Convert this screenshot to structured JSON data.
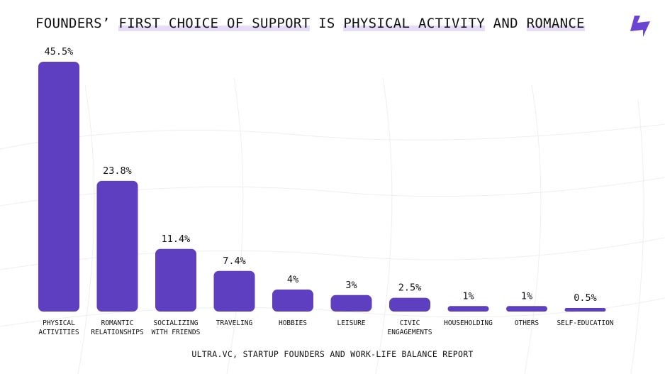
{
  "header": {
    "title_parts": [
      "FOUNDERS’ ",
      "FIRST CHOICE OF SUPPORT",
      " IS ",
      "PHYSICAL ACTIVITY",
      " AND ",
      "ROMANCE"
    ],
    "logo_icon": "lightning-bolt-icon"
  },
  "colors": {
    "bar": "#5e3fc0",
    "highlight": "#e6dcf7",
    "text": "#111111",
    "grid": "#ececec"
  },
  "chart_data": {
    "type": "bar",
    "title": "FOUNDERS’ FIRST CHOICE OF SUPPORT IS PHYSICAL ACTIVITY AND ROMANCE",
    "categories": [
      [
        "PHYSICAL",
        "ACTIVITIES"
      ],
      [
        "ROMANTIC",
        "RELATIONSHIPS"
      ],
      [
        "SOCIALIZING",
        "WITH FRIENDS"
      ],
      [
        "TRAVELING"
      ],
      [
        "HOBBIES"
      ],
      [
        "LEISURE"
      ],
      [
        "CIVIC",
        "ENGAGEMENTS"
      ],
      [
        "HOUSEHOLDING"
      ],
      [
        "OTHERS"
      ],
      [
        "SELF-EDUCATION"
      ]
    ],
    "values": [
      45.5,
      23.8,
      11.4,
      7.4,
      4,
      3,
      2.5,
      1,
      1,
      0.5
    ],
    "value_labels": [
      "45.5%",
      "23.8%",
      "11.4%",
      "7.4%",
      "4%",
      "3%",
      "2.5%",
      "1%",
      "1%",
      "0.5%"
    ],
    "unit": "%",
    "xlabel": "",
    "ylabel": "",
    "ylim": [
      0,
      45.5
    ],
    "grid": false,
    "legend": "none"
  },
  "footer": {
    "source": "ULTRA.VC, STARTUP FOUNDERS AND WORK-LIFE BALANCE REPORT"
  }
}
